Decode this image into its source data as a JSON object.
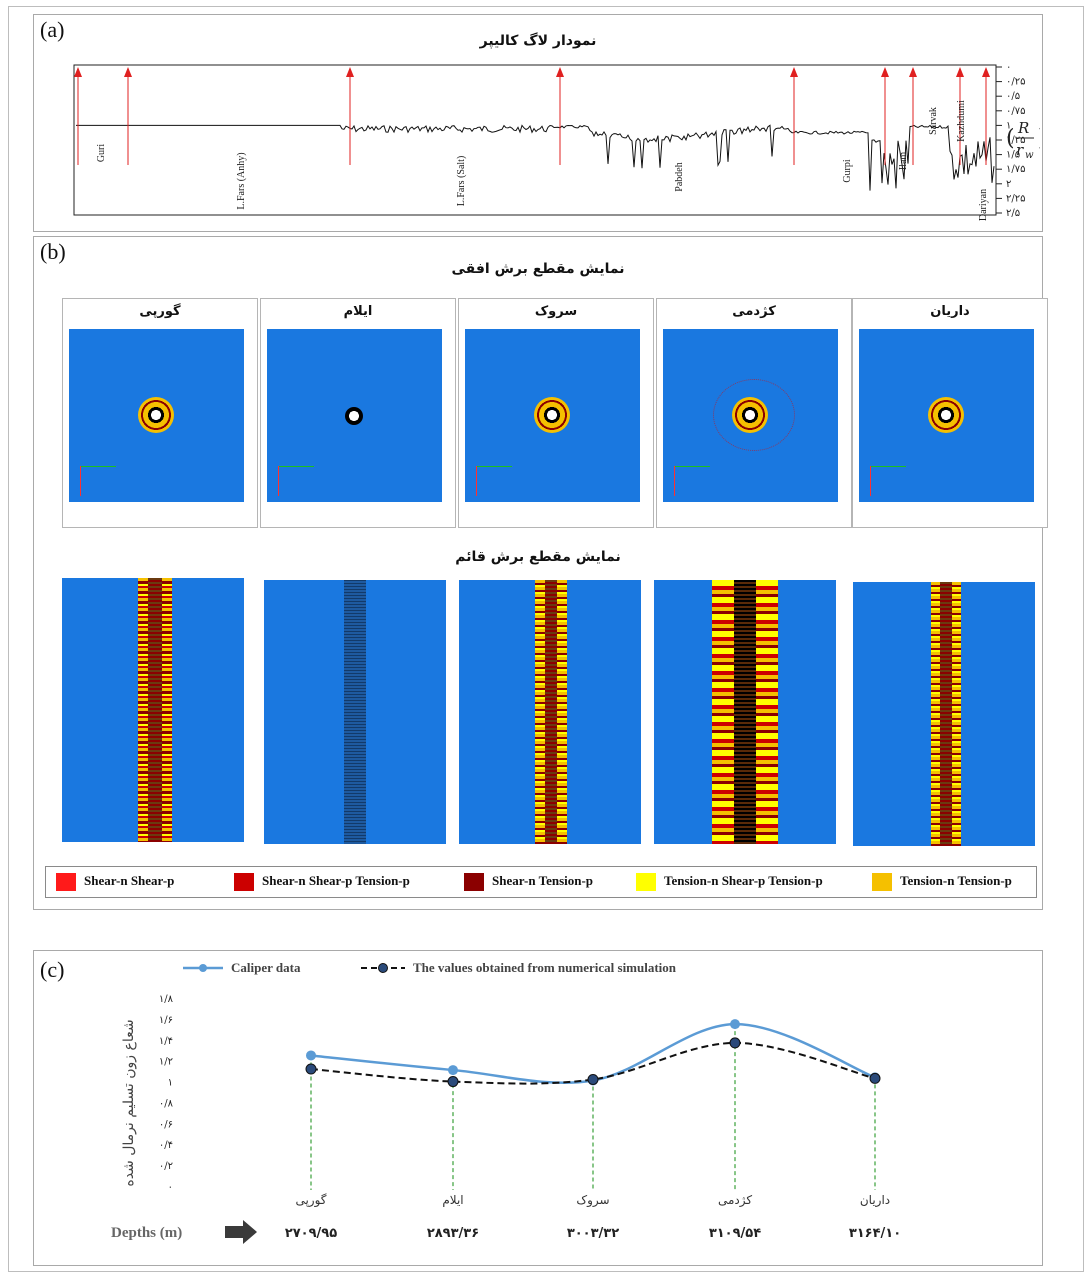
{
  "panel_a": {
    "label": "(a)",
    "title": "نمودار لاگ کالیپر",
    "y_ticks": [
      "۰",
      "۰/۲۵",
      "۰/۵",
      "۰/۷۵",
      "۱",
      "۱/۲۵",
      "۱/۵",
      "۱/۷۵",
      "۲",
      "۲/۲۵",
      "۲/۵"
    ],
    "formations": [
      "Guri",
      "L.Fars (Anhy)",
      "L.Fars (Salt)",
      "Pabdeh",
      "Gurpi",
      "Ilam",
      "Sarvak",
      "Kazhdumi",
      "Dariyan"
    ],
    "axis_symbol": "R / r_w"
  },
  "panel_b": {
    "label": "(b)",
    "title_horizontal": "نمایش مقطع برش افقی",
    "title_vertical": "نمایش مقطع برش  قائم",
    "formations": [
      "گورپی",
      "ایلام",
      "سروک",
      "کژدمی",
      "داریان"
    ],
    "legend": [
      {
        "label": "Shear-n Shear-p",
        "color": "#ff1a1a"
      },
      {
        "label": "Shear-n Shear-p Tension-p",
        "color": "#cc0000"
      },
      {
        "label": "Shear-n Tension-p",
        "color": "#8b0000"
      },
      {
        "label": "Tension-n Shear-p Tension-p",
        "color": "#ffff00"
      },
      {
        "label": "Tension-n Tension-p",
        "color": "#f5c000"
      }
    ]
  },
  "panel_c": {
    "label": "(c)",
    "ylabel": "شعاع زون تسلیم نرمال شده",
    "depth_label": "Depths (m)",
    "depths": [
      "۲۷۰۹/۹۵",
      "۲۸۹۳/۳۶",
      "۳۰۰۳/۳۲",
      "۳۱۰۹/۵۴",
      "۳۱۶۴/۱۰"
    ]
  },
  "chart_data": {
    "type": "line",
    "categories": [
      "گورپی",
      "ایلام",
      "سروک",
      "کژدمی",
      "داریان"
    ],
    "series": [
      {
        "name": "Caliper data",
        "values": [
          1.25,
          1.11,
          1.01,
          1.55,
          1.04
        ],
        "color": "#5b9bd5"
      },
      {
        "name": "The values obtained from numerical simulation",
        "values": [
          1.12,
          1.0,
          1.02,
          1.37,
          1.03
        ],
        "color": "#1f2f55"
      }
    ],
    "ylim": [
      0,
      1.8
    ],
    "yticks": [
      "۰",
      "۰/۲",
      "۰/۴",
      "۰/۶",
      "۰/۸",
      "۱",
      "۱/۲",
      "۱/۴",
      "۱/۶",
      "۱/۸"
    ],
    "ylabel": "شعاع زون تسلیم نرمال شده",
    "xlabel": "Depths (m)"
  }
}
